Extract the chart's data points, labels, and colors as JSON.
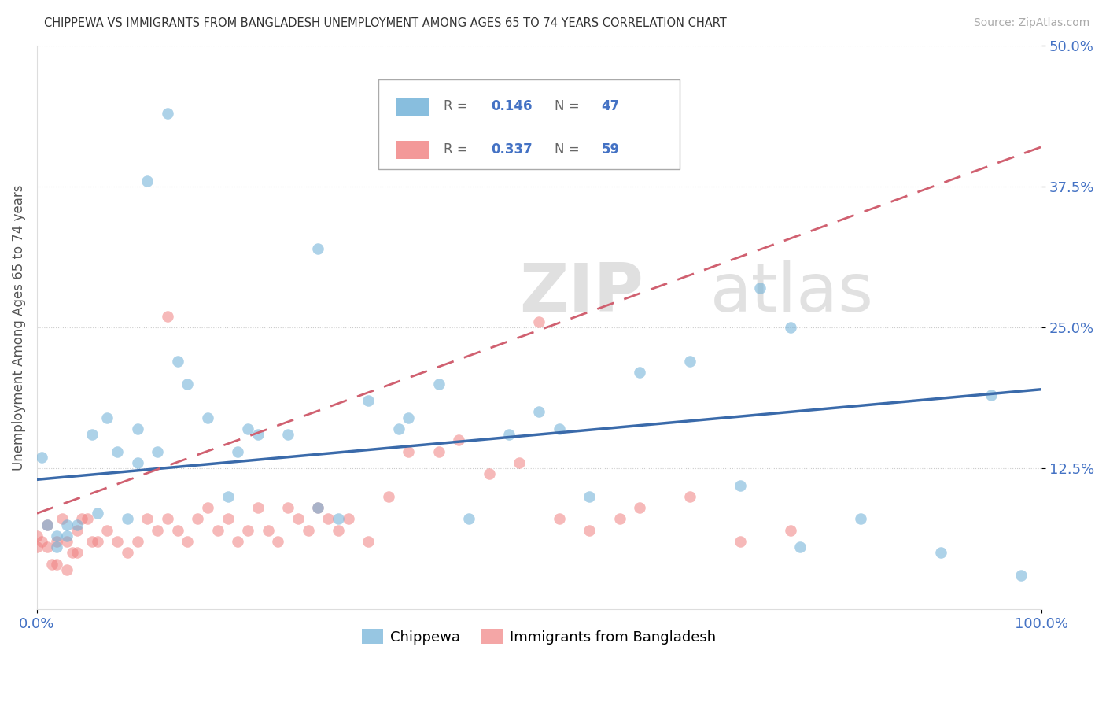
{
  "title": "CHIPPEWA VS IMMIGRANTS FROM BANGLADESH UNEMPLOYMENT AMONG AGES 65 TO 74 YEARS CORRELATION CHART",
  "source": "Source: ZipAtlas.com",
  "ylabel": "Unemployment Among Ages 65 to 74 years",
  "xlim": [
    0,
    1.0
  ],
  "ylim": [
    0,
    0.5
  ],
  "ytick_vals": [
    0.125,
    0.25,
    0.375,
    0.5
  ],
  "ytick_labels": [
    "12.5%",
    "25.0%",
    "37.5%",
    "50.0%"
  ],
  "xtick_vals": [
    0.0,
    1.0
  ],
  "xtick_labels": [
    "0.0%",
    "100.0%"
  ],
  "chippewa_R": 0.146,
  "chippewa_N": 47,
  "bangladesh_R": 0.337,
  "bangladesh_N": 59,
  "chippewa_color": "#6baed6",
  "bangladesh_color": "#f08080",
  "chippewa_line_color": "#3a6aaa",
  "bangladesh_line_color": "#d06070",
  "chippewa_x": [
    0.13,
    0.11,
    0.28,
    0.005,
    0.01,
    0.02,
    0.03,
    0.04,
    0.055,
    0.07,
    0.08,
    0.09,
    0.1,
    0.12,
    0.14,
    0.15,
    0.17,
    0.19,
    0.21,
    0.22,
    0.25,
    0.3,
    0.33,
    0.37,
    0.4,
    0.43,
    0.47,
    0.5,
    0.55,
    0.6,
    0.65,
    0.7,
    0.75,
    0.82,
    0.9,
    0.95,
    0.98,
    0.06,
    0.2,
    0.28,
    0.36,
    0.52,
    0.76,
    0.72,
    0.02,
    0.03,
    0.1
  ],
  "chippewa_y": [
    0.44,
    0.38,
    0.32,
    0.135,
    0.075,
    0.055,
    0.065,
    0.075,
    0.155,
    0.17,
    0.14,
    0.08,
    0.13,
    0.14,
    0.22,
    0.2,
    0.17,
    0.1,
    0.16,
    0.155,
    0.155,
    0.08,
    0.185,
    0.17,
    0.2,
    0.08,
    0.155,
    0.175,
    0.1,
    0.21,
    0.22,
    0.11,
    0.25,
    0.08,
    0.05,
    0.19,
    0.03,
    0.085,
    0.14,
    0.09,
    0.16,
    0.16,
    0.055,
    0.285,
    0.065,
    0.075,
    0.16
  ],
  "bangladesh_x": [
    0.0,
    0.0,
    0.005,
    0.01,
    0.01,
    0.015,
    0.02,
    0.02,
    0.025,
    0.03,
    0.03,
    0.035,
    0.04,
    0.04,
    0.045,
    0.05,
    0.055,
    0.06,
    0.07,
    0.08,
    0.09,
    0.1,
    0.11,
    0.12,
    0.13,
    0.14,
    0.15,
    0.16,
    0.17,
    0.18,
    0.19,
    0.2,
    0.21,
    0.22,
    0.23,
    0.24,
    0.25,
    0.26,
    0.27,
    0.28,
    0.29,
    0.3,
    0.31,
    0.33,
    0.35,
    0.37,
    0.4,
    0.42,
    0.45,
    0.48,
    0.5,
    0.52,
    0.55,
    0.58,
    0.6,
    0.65,
    0.7,
    0.75,
    0.13
  ],
  "bangladesh_y": [
    0.065,
    0.055,
    0.06,
    0.075,
    0.055,
    0.04,
    0.04,
    0.06,
    0.08,
    0.035,
    0.06,
    0.05,
    0.05,
    0.07,
    0.08,
    0.08,
    0.06,
    0.06,
    0.07,
    0.06,
    0.05,
    0.06,
    0.08,
    0.07,
    0.26,
    0.07,
    0.06,
    0.08,
    0.09,
    0.07,
    0.08,
    0.06,
    0.07,
    0.09,
    0.07,
    0.06,
    0.09,
    0.08,
    0.07,
    0.09,
    0.08,
    0.07,
    0.08,
    0.06,
    0.1,
    0.14,
    0.14,
    0.15,
    0.12,
    0.13,
    0.255,
    0.08,
    0.07,
    0.08,
    0.09,
    0.1,
    0.06,
    0.07,
    0.08
  ],
  "chippewa_trend_x0": 0.0,
  "chippewa_trend_y0": 0.115,
  "chippewa_trend_x1": 1.0,
  "chippewa_trend_y1": 0.195,
  "bangladesh_trend_x0": 0.0,
  "bangladesh_trend_y0": 0.085,
  "bangladesh_trend_x1": 1.0,
  "bangladesh_trend_y1": 0.41
}
